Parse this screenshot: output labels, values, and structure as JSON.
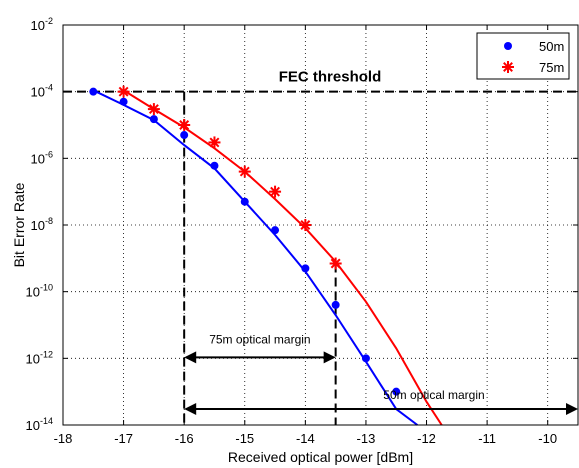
{
  "chart_data": {
    "type": "scatter",
    "xlabel": "Received optical power [dBm]",
    "ylabel": "Bit Error Rate",
    "xlim": [
      -18,
      -9.5
    ],
    "ylim_exponent": [
      -14,
      -2
    ],
    "y_scale": "log",
    "grid": true,
    "legend_placement": "top-right",
    "x_ticks": [
      "-18",
      "-17",
      "-16",
      "-15",
      "-14",
      "-13",
      "-12",
      "-11",
      "-10"
    ],
    "y_tick_base": "10",
    "y_tick_exponents": [
      "-14",
      "-12",
      "-10",
      "-8",
      "-6",
      "-4",
      "-2"
    ],
    "series": [
      {
        "name": "50m",
        "color": "#0000ff",
        "marker": "dot",
        "points": [
          [
            -17.5,
            0.0001
          ],
          [
            -17.0,
            5e-05
          ],
          [
            -16.5,
            1.5e-05
          ],
          [
            -16.0,
            5e-06
          ],
          [
            -15.5,
            6e-07
          ],
          [
            -15.0,
            5e-08
          ],
          [
            -14.5,
            7e-09
          ],
          [
            -14.0,
            5e-10
          ],
          [
            -13.5,
            4e-11
          ],
          [
            -13.0,
            1e-12
          ],
          [
            -12.5,
            1e-13
          ]
        ],
        "fit": [
          [
            -17.5,
            0.00011
          ],
          [
            -17.0,
            4e-05
          ],
          [
            -16.5,
            1.4e-05
          ],
          [
            -16.0,
            2.5e-06
          ],
          [
            -15.5,
            5e-07
          ],
          [
            -15.0,
            5e-08
          ],
          [
            -14.5,
            5e-09
          ],
          [
            -14.0,
            4e-10
          ],
          [
            -13.5,
            2e-11
          ],
          [
            -13.0,
            8e-13
          ],
          [
            -12.5,
            3e-14
          ],
          [
            -12.15,
            1e-14
          ]
        ]
      },
      {
        "name": "75m",
        "color": "#ff0000",
        "marker": "star",
        "points": [
          [
            -17.0,
            0.0001
          ],
          [
            -16.5,
            3e-05
          ],
          [
            -16.0,
            1e-05
          ],
          [
            -15.5,
            3e-06
          ],
          [
            -15.0,
            4e-07
          ],
          [
            -14.5,
            1e-07
          ],
          [
            -14.0,
            1e-08
          ],
          [
            -13.5,
            7e-10
          ]
        ],
        "fit": [
          [
            -17.0,
            0.00011
          ],
          [
            -16.5,
            3e-05
          ],
          [
            -16.0,
            8.5e-06
          ],
          [
            -15.5,
            2e-06
          ],
          [
            -15.0,
            4e-07
          ],
          [
            -14.5,
            6e-08
          ],
          [
            -14.0,
            8e-09
          ],
          [
            -13.5,
            8e-10
          ],
          [
            -13.0,
            5e-11
          ],
          [
            -12.5,
            2e-12
          ],
          [
            -12.0,
            5e-14
          ],
          [
            -11.75,
            1e-14
          ]
        ]
      }
    ],
    "annotations": {
      "fec_threshold": {
        "label": "FEC threshold",
        "y": 0.0001
      },
      "margin_75m": {
        "label": "75m optical margin",
        "x_start": -16.0,
        "x_end": -13.5,
        "y": 1e-12
      },
      "margin_50m": {
        "label": "50m optical margin",
        "x_start": -16.0,
        "x_end": -9.5,
        "y": 1e-14
      }
    }
  }
}
